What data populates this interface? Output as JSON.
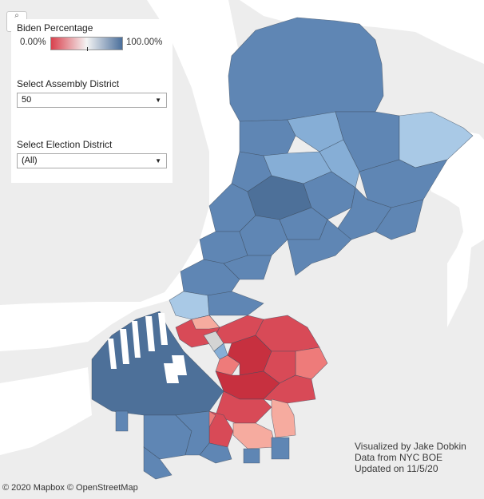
{
  "legend": {
    "title": "Biden Percentage",
    "min_label": "0.00%",
    "max_label": "100.00%",
    "gradient_low": "#d9414d",
    "gradient_mid": "#f4f4f4",
    "gradient_high": "#4a6f9b"
  },
  "assembly_filter": {
    "label": "Select Assembly District",
    "value": "50"
  },
  "election_filter": {
    "label": "Select Election District",
    "value": "(All)"
  },
  "zoom_control": {
    "glyph": "⌕"
  },
  "attribution": "© 2020 Mapbox  © OpenStreetMap",
  "credits": {
    "line1": "Visualized by Jake Dobkin",
    "line2": "Data from NYC BOE",
    "line3": "Updated on 11/5/20"
  },
  "colors": {
    "water": "#ffffff",
    "land": "#ededed",
    "blue_dark": "#4d7099",
    "blue_mid": "#5f86b4",
    "blue_light": "#86aed6",
    "blue_pale": "#a9c9e6",
    "red_dark": "#c7303f",
    "red_mid": "#d84a57",
    "red_light": "#ee7b7a",
    "salmon": "#f6ab9f",
    "grey": "#d4d4d4"
  }
}
